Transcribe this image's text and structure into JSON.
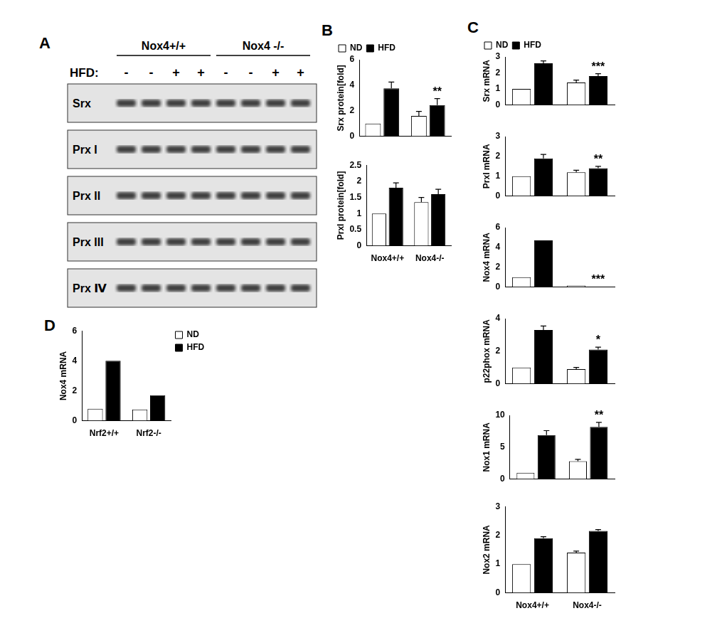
{
  "blot": {
    "panel": "A",
    "groups": [
      "Nox4+/+",
      "Nox4 -/-"
    ],
    "treatment_label": "HFD:",
    "treatment": [
      "-",
      "-",
      "+",
      "+",
      "-",
      "-",
      "+",
      "+"
    ],
    "rows": [
      "Srx",
      "Prx I",
      "Prx II",
      "Prx III",
      "Prx Ⅳ"
    ]
  },
  "chart_data": [
    {
      "type": "bar",
      "panel": "B",
      "y_label": "Srx protein[fold]",
      "categories": [
        null,
        null
      ],
      "ylim": [
        0,
        6
      ],
      "yticks": [
        0,
        2,
        4,
        6
      ],
      "grid": false,
      "legend": "top-left",
      "series": [
        {
          "name": "ND",
          "color": "#ffffff",
          "values": [
            1,
            1.6
          ],
          "errors": [
            0,
            0.35
          ]
        },
        {
          "name": "HFD",
          "color": "#000000",
          "values": [
            3.75,
            2.45
          ],
          "errors": [
            0.5,
            0.5
          ],
          "significance": [
            null,
            "**"
          ]
        }
      ]
    },
    {
      "type": "bar",
      "y_label": "PrxI protein[fold]",
      "categories": [
        "Nox4+/+",
        "Nox4-/-"
      ],
      "ylim": [
        0,
        2.5
      ],
      "yticks": [
        0,
        0.5,
        1,
        1.5,
        2,
        2.5
      ],
      "grid": false,
      "series": [
        {
          "name": "ND",
          "color": "#ffffff",
          "values": [
            1,
            1.35
          ],
          "errors": [
            0,
            0.15
          ]
        },
        {
          "name": "HFD",
          "color": "#000000",
          "values": [
            1.8,
            1.6
          ],
          "errors": [
            0.15,
            0.15
          ]
        }
      ]
    },
    {
      "type": "bar",
      "panel": "C",
      "y_label": "Srx mRNA",
      "categories": [
        null,
        null
      ],
      "ylim": [
        0,
        3
      ],
      "yticks": [
        0,
        1,
        2,
        3
      ],
      "grid": false,
      "legend": "top-left",
      "series": [
        {
          "name": "ND",
          "color": "#ffffff",
          "values": [
            1,
            1.4
          ],
          "errors": [
            0,
            0.15
          ]
        },
        {
          "name": "HFD",
          "color": "#000000",
          "values": [
            2.6,
            1.8
          ],
          "errors": [
            0.15,
            0.15
          ],
          "significance": [
            null,
            "***"
          ]
        }
      ]
    },
    {
      "type": "bar",
      "y_label": "PrxI mRNA",
      "categories": [
        null,
        null
      ],
      "ylim": [
        0,
        3
      ],
      "yticks": [
        0,
        1,
        2,
        3
      ],
      "grid": false,
      "series": [
        {
          "name": "ND",
          "color": "#ffffff",
          "values": [
            1,
            1.2
          ],
          "errors": [
            0,
            0.1
          ]
        },
        {
          "name": "HFD",
          "color": "#000000",
          "values": [
            1.9,
            1.4
          ],
          "errors": [
            0.2,
            0.1
          ],
          "significance": [
            null,
            "**"
          ]
        }
      ]
    },
    {
      "type": "bar",
      "y_label": "Nox4 mRNA",
      "categories": [
        null,
        null
      ],
      "ylim": [
        0,
        6
      ],
      "yticks": [
        0,
        2,
        4,
        6
      ],
      "grid": false,
      "series": [
        {
          "name": "ND",
          "color": "#ffffff",
          "values": [
            1,
            0.15
          ]
        },
        {
          "name": "HFD",
          "color": "#000000",
          "values": [
            4.7,
            0.05
          ],
          "significance": [
            null,
            "***"
          ]
        }
      ]
    },
    {
      "type": "bar",
      "y_label": "p22phox mRNA",
      "categories": [
        null,
        null
      ],
      "ylim": [
        0,
        4
      ],
      "yticks": [
        0,
        2,
        4
      ],
      "grid": false,
      "series": [
        {
          "name": "ND",
          "color": "#ffffff",
          "values": [
            1,
            0.9
          ],
          "errors": [
            0,
            0.1
          ]
        },
        {
          "name": "HFD",
          "color": "#000000",
          "values": [
            3.3,
            2.1
          ],
          "errors": [
            0.25,
            0.15
          ],
          "significance": [
            null,
            "*"
          ]
        }
      ]
    },
    {
      "type": "bar",
      "y_label": "Nox1 mRNA",
      "categories": [
        null,
        null
      ],
      "ylim": [
        0,
        10
      ],
      "yticks": [
        0,
        5,
        10
      ],
      "grid": false,
      "series": [
        {
          "name": "ND",
          "color": "#ffffff",
          "values": [
            1,
            2.8
          ],
          "errors": [
            0,
            0.3
          ]
        },
        {
          "name": "HFD",
          "color": "#000000",
          "values": [
            6.9,
            8.2
          ],
          "errors": [
            0.7,
            0.7
          ],
          "significance": [
            null,
            "**"
          ]
        }
      ]
    },
    {
      "type": "bar",
      "y_label": "Nox2 mRNA",
      "categories": [
        "Nox4+/+",
        "Nox4-/-"
      ],
      "ylim": [
        0,
        3
      ],
      "yticks": [
        0,
        1,
        2,
        3
      ],
      "grid": false,
      "series": [
        {
          "name": "ND",
          "color": "#ffffff",
          "values": [
            1,
            1.4
          ],
          "errors": [
            0,
            0.05
          ]
        },
        {
          "name": "HFD",
          "color": "#000000",
          "values": [
            1.9,
            2.15
          ],
          "errors": [
            0.05,
            0.05
          ]
        }
      ]
    },
    {
      "type": "bar",
      "panel": "D",
      "y_label": "Nox4 mRNA",
      "categories": [
        "Nrf2+/+",
        "Nrf2-/-"
      ],
      "ylim": [
        0,
        6
      ],
      "yticks": [
        0,
        2,
        4,
        6
      ],
      "grid": false,
      "legend": "top-right",
      "series": [
        {
          "name": "ND",
          "color": "#ffffff",
          "values": [
            0.8,
            0.75
          ]
        },
        {
          "name": "HFD",
          "color": "#000000",
          "values": [
            4,
            1.7
          ]
        }
      ]
    }
  ]
}
